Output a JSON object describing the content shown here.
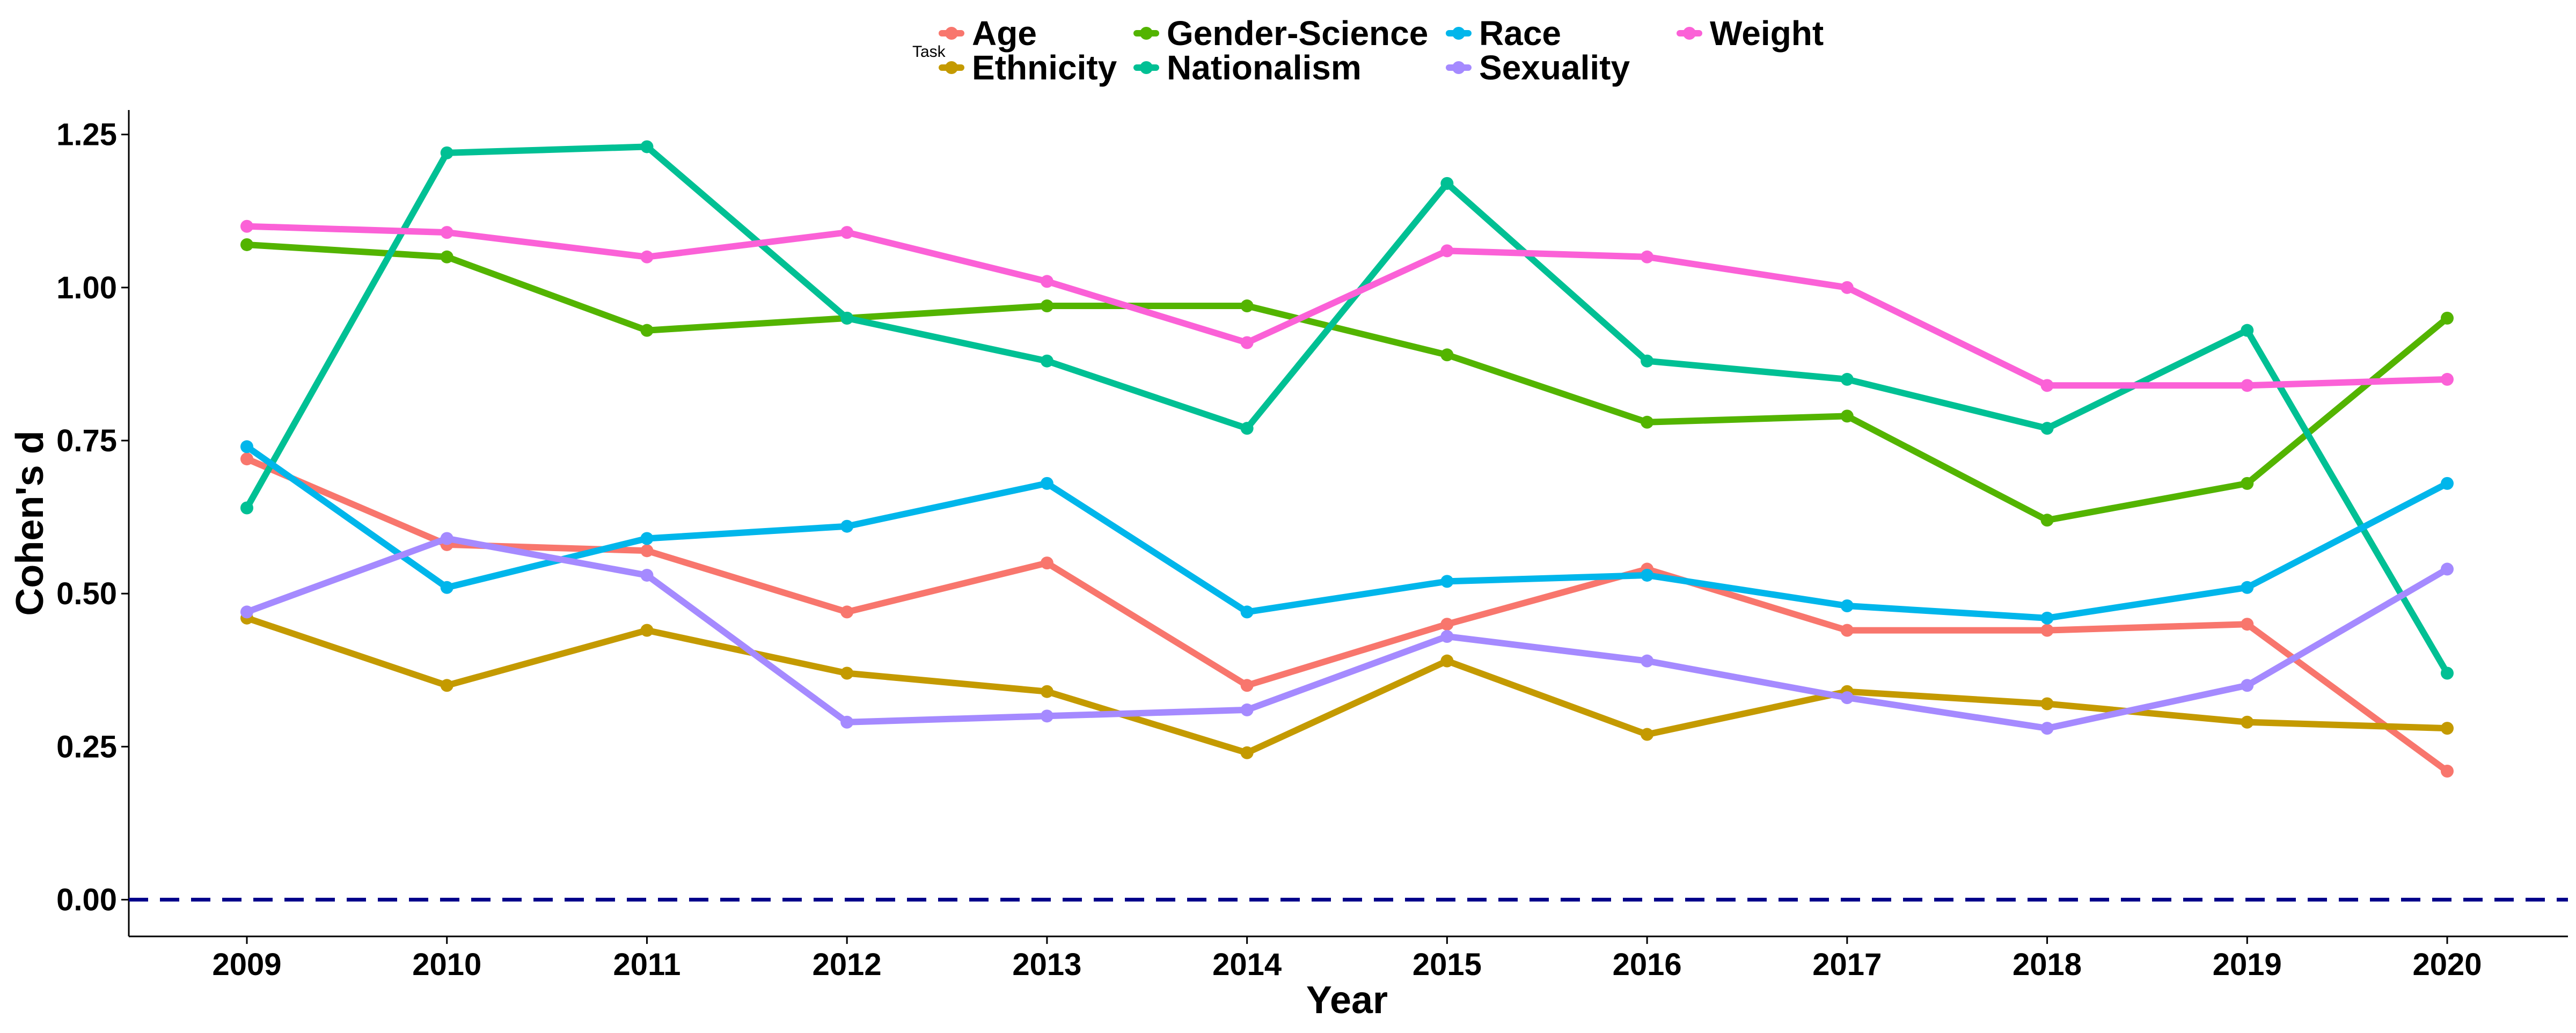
{
  "chart_data": {
    "type": "line",
    "title": "",
    "xlabel": "Year",
    "ylabel": "Cohen's d",
    "legend_title": "Task",
    "legend_position": "top",
    "x": [
      2009,
      2010,
      2011,
      2012,
      2013,
      2014,
      2015,
      2016,
      2017,
      2018,
      2019,
      2020
    ],
    "x_tick_labels": [
      "2009",
      "2010",
      "2011",
      "2012",
      "2013",
      "2014",
      "2015",
      "2016",
      "2017",
      "2018",
      "2019",
      "2020"
    ],
    "ylim": [
      -0.06,
      1.29
    ],
    "y_ticks": [
      0.0,
      0.25,
      0.5,
      0.75,
      1.0,
      1.25
    ],
    "y_tick_labels": [
      "0.00",
      "0.25",
      "0.50",
      "0.75",
      "1.00",
      "1.25"
    ],
    "grid": false,
    "reference_line": {
      "y": 0.0,
      "style": "dashed",
      "color": "#00008B"
    },
    "series": [
      {
        "name": "Age",
        "color": "#F8766D",
        "values": [
          0.72,
          0.58,
          0.57,
          0.47,
          0.55,
          0.35,
          0.45,
          0.54,
          0.44,
          0.44,
          0.45,
          0.21
        ]
      },
      {
        "name": "Ethnicity",
        "color": "#C49A00",
        "values": [
          0.46,
          0.35,
          0.44,
          0.37,
          0.34,
          0.24,
          0.39,
          0.27,
          0.34,
          0.32,
          0.29,
          0.28
        ]
      },
      {
        "name": "Gender-Science",
        "color": "#53B400",
        "values": [
          1.07,
          1.05,
          0.93,
          0.95,
          0.97,
          0.97,
          0.89,
          0.78,
          0.79,
          0.62,
          0.68,
          0.95
        ]
      },
      {
        "name": "Nationalism",
        "color": "#00C094",
        "values": [
          0.64,
          1.22,
          1.23,
          0.95,
          0.88,
          0.77,
          1.17,
          0.88,
          0.85,
          0.77,
          0.93,
          0.37
        ]
      },
      {
        "name": "Race",
        "color": "#00B6EB",
        "values": [
          0.74,
          0.51,
          0.59,
          0.61,
          0.68,
          0.47,
          0.52,
          0.53,
          0.48,
          0.46,
          0.51,
          0.68
        ]
      },
      {
        "name": "Sexuality",
        "color": "#A58AFF",
        "values": [
          0.47,
          0.59,
          0.53,
          0.29,
          0.3,
          0.31,
          0.43,
          0.39,
          0.33,
          0.28,
          0.35,
          0.54
        ]
      },
      {
        "name": "Weight",
        "color": "#FB61D7",
        "values": [
          1.1,
          1.09,
          1.05,
          1.09,
          1.01,
          0.91,
          1.06,
          1.05,
          1.0,
          0.84,
          0.84,
          0.85
        ]
      }
    ]
  }
}
